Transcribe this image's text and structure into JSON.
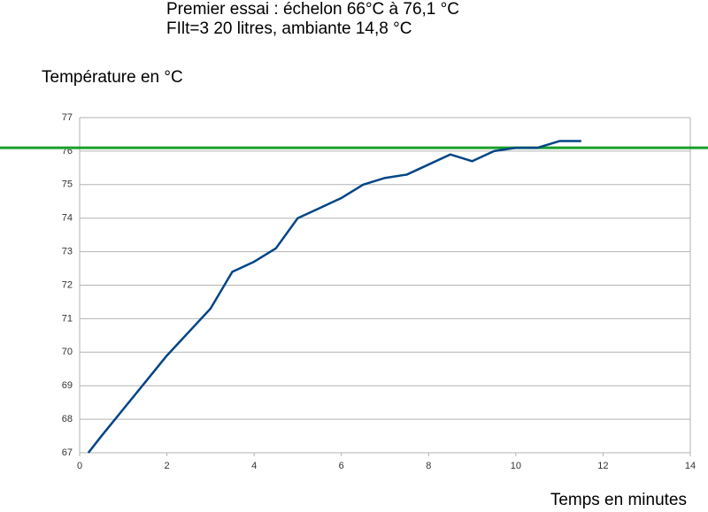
{
  "chart_data": {
    "type": "line",
    "title": "Premier essai : échelon 66°C à 76,1 °C",
    "subtitle": "FIlt=3 20 litres, ambiante 14,8 °C",
    "y_label": "Température en °C",
    "x_label": "Temps en minutes",
    "x": [
      0.2,
      0.5,
      1,
      1.5,
      2,
      2.5,
      3,
      3.5,
      4,
      4.5,
      5,
      5.5,
      6,
      6.5,
      7,
      7.5,
      8,
      8.5,
      9,
      9.5,
      10,
      10.5,
      11,
      11.5
    ],
    "series": [
      {
        "color": "#004586",
        "values": [
          67.0,
          67.5,
          68.3,
          69.1,
          69.9,
          70.6,
          71.3,
          72.4,
          72.7,
          73.1,
          74.0,
          74.3,
          74.6,
          75.0,
          75.2,
          75.3,
          75.6,
          75.9,
          75.7,
          76.0,
          76.1,
          76.1,
          76.3,
          76.3
        ]
      }
    ],
    "reference_line": {
      "value": 76.1,
      "color": "#1a9e2a"
    },
    "xlim": [
      0,
      14
    ],
    "xticks": [
      0,
      2,
      4,
      6,
      8,
      10,
      12,
      14
    ],
    "ylim": [
      67,
      77
    ],
    "yticks": [
      67,
      68,
      69,
      70,
      71,
      72,
      73,
      74,
      75,
      76,
      77
    ],
    "grid": true
  }
}
